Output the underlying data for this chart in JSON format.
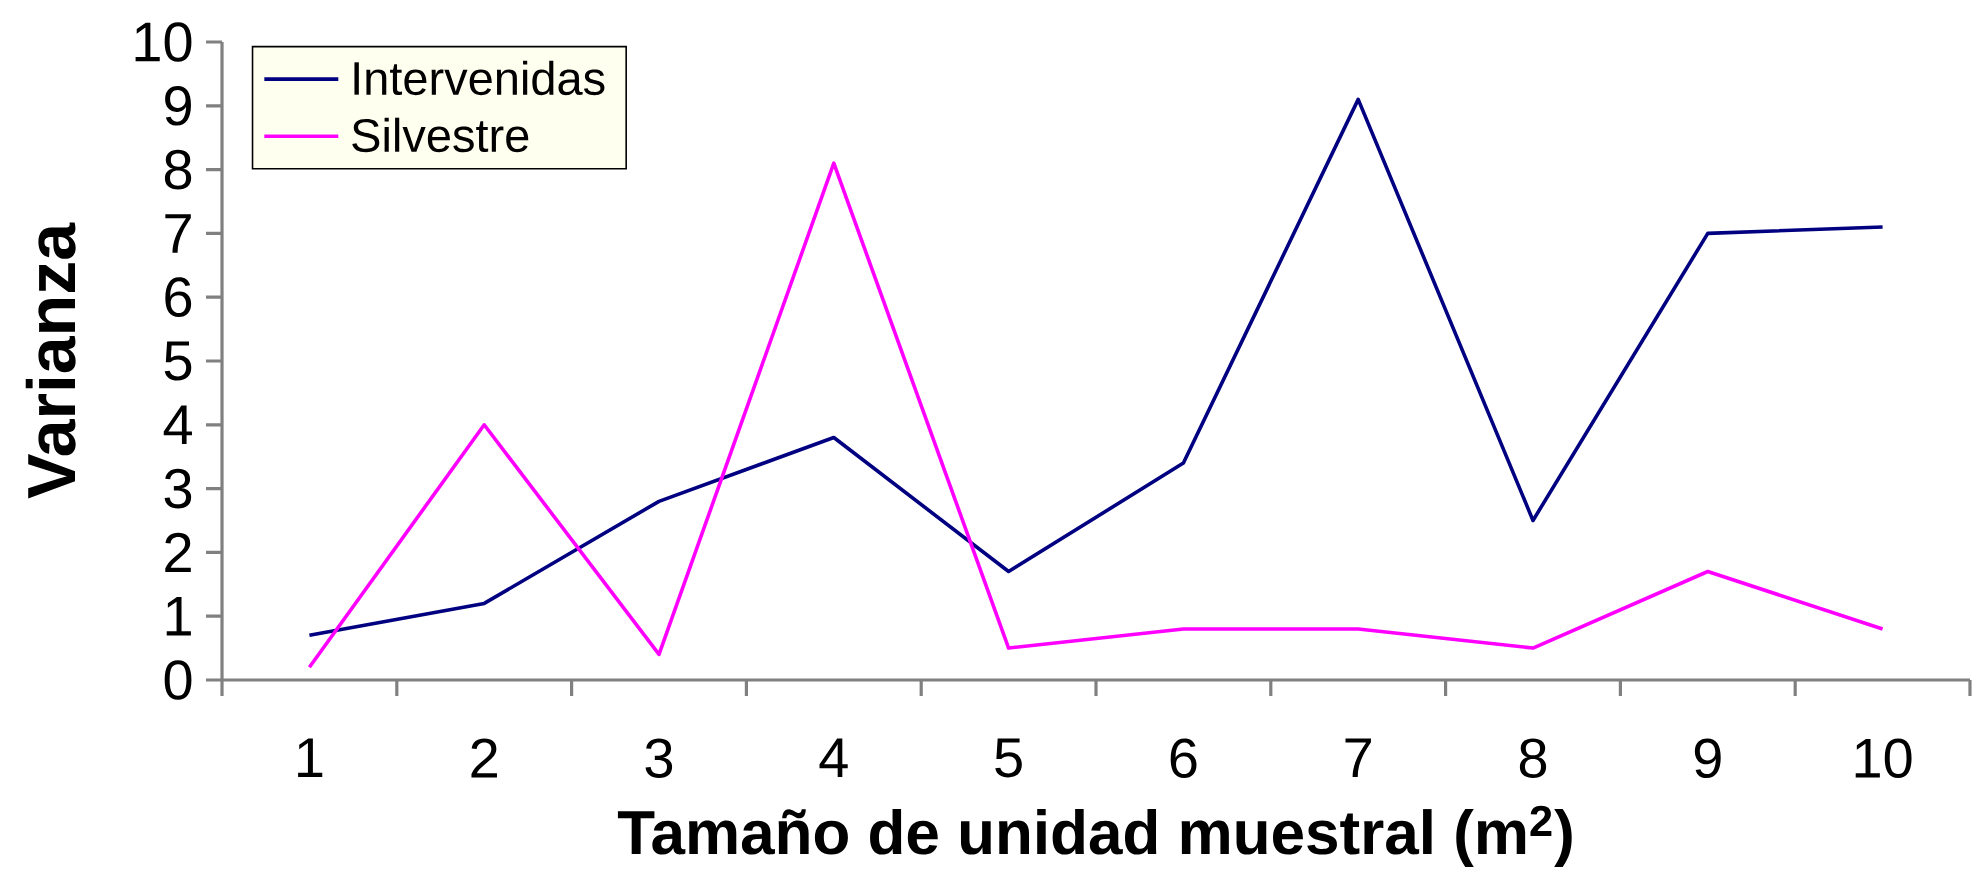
{
  "chart_data": {
    "type": "line",
    "xlabel": "Tamaño de unidad muestral (m$^{2}$)",
    "ylabel": "Varianza",
    "categories": [
      "1",
      "2",
      "3",
      "4",
      "5",
      "6",
      "7",
      "8",
      "9",
      "10"
    ],
    "series": [
      {
        "name": "Intervenidas",
        "color": "#000080",
        "values": [
          0.7,
          1.2,
          2.8,
          3.8,
          1.7,
          3.4,
          9.1,
          2.5,
          7.0,
          7.1
        ]
      },
      {
        "name": "Silvestre",
        "color": "#ff00ff",
        "values": [
          0.2,
          4.0,
          0.4,
          8.1,
          0.5,
          0.8,
          0.8,
          0.5,
          1.7,
          0.8
        ]
      }
    ],
    "ylim": [
      0,
      10
    ],
    "yticks": [
      0,
      1,
      2,
      3,
      4,
      5,
      6,
      7,
      8,
      9,
      10
    ],
    "legend": "top left"
  }
}
